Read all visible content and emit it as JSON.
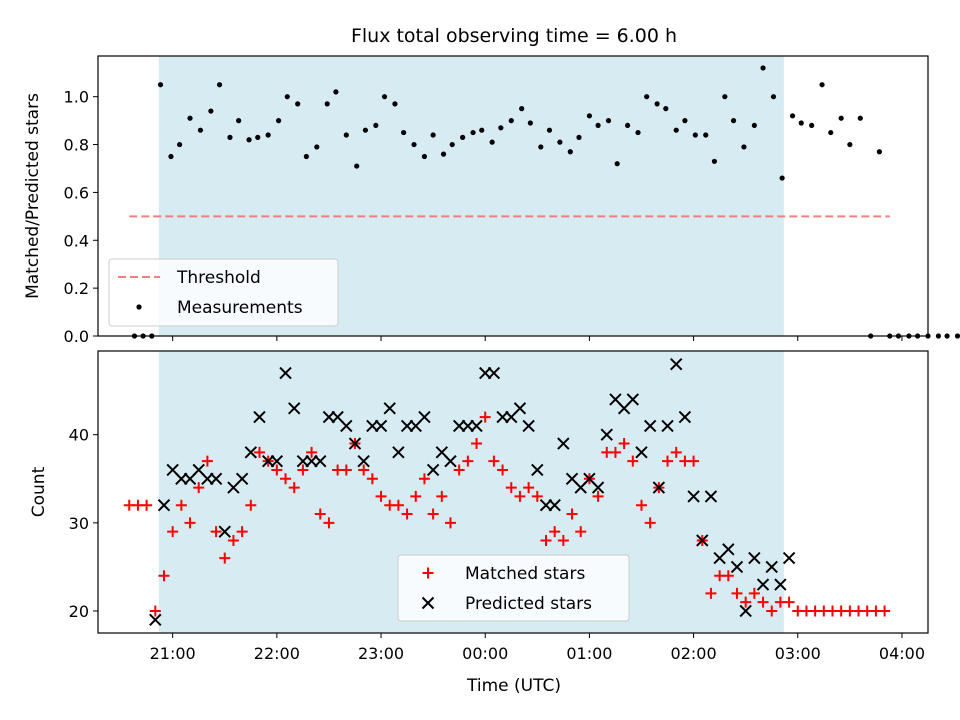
{
  "chart_data": [
    {
      "type": "scatter",
      "title": "Flux total observing time = 6.00 h",
      "xlabel": "",
      "ylabel": "Matched/Predicted stars",
      "ylim": [
        0,
        1.17
      ],
      "yticks": [
        "0.0",
        "0.2",
        "0.4",
        "0.6",
        "0.8",
        "1.0"
      ],
      "highlight_span": {
        "start": "20:52",
        "end": "02:52",
        "color": "#add8e6"
      },
      "legend_position": "lower-left",
      "threshold": {
        "name": "Threshold",
        "value": 0.5,
        "x_start": "20:35",
        "x_end": "03:53",
        "color": "#f08080",
        "style": "dashed"
      },
      "series": [
        {
          "name": "Measurements",
          "color": "#000000",
          "marker": "dot",
          "points": [
            [
              "20:38",
              0
            ],
            [
              "20:43",
              0
            ],
            [
              "20:48",
              0
            ],
            [
              "20:53",
              1.05
            ],
            [
              "20:59",
              0.75
            ],
            [
              "21:04",
              0.8
            ],
            [
              "21:10",
              0.91
            ],
            [
              "21:16",
              0.86
            ],
            [
              "21:22",
              0.94
            ],
            [
              "21:27",
              1.05
            ],
            [
              "21:33",
              0.83
            ],
            [
              "21:38",
              0.9
            ],
            [
              "21:44",
              0.82
            ],
            [
              "21:49",
              0.83
            ],
            [
              "21:55",
              0.84
            ],
            [
              "22:01",
              0.9
            ],
            [
              "22:06",
              1.0
            ],
            [
              "22:12",
              0.97
            ],
            [
              "22:17",
              0.75
            ],
            [
              "22:23",
              0.79
            ],
            [
              "22:29",
              0.97
            ],
            [
              "22:34",
              1.02
            ],
            [
              "22:40",
              0.84
            ],
            [
              "22:46",
              0.71
            ],
            [
              "22:51",
              0.86
            ],
            [
              "22:57",
              0.88
            ],
            [
              "23:02",
              1.0
            ],
            [
              "23:08",
              0.97
            ],
            [
              "23:13",
              0.85
            ],
            [
              "23:19",
              0.8
            ],
            [
              "23:25",
              0.75
            ],
            [
              "23:30",
              0.84
            ],
            [
              "23:36",
              0.76
            ],
            [
              "23:41",
              0.8
            ],
            [
              "23:47",
              0.83
            ],
            [
              "23:53",
              0.85
            ],
            [
              "23:58",
              0.86
            ],
            [
              "00:04",
              0.81
            ],
            [
              "00:09",
              0.87
            ],
            [
              "00:15",
              0.9
            ],
            [
              "00:21",
              0.95
            ],
            [
              "00:26",
              0.89
            ],
            [
              "00:32",
              0.79
            ],
            [
              "00:37",
              0.86
            ],
            [
              "00:43",
              0.81
            ],
            [
              "00:49",
              0.77
            ],
            [
              "00:54",
              0.83
            ],
            [
              "01:00",
              0.92
            ],
            [
              "01:05",
              0.88
            ],
            [
              "01:11",
              0.9
            ],
            [
              "01:16",
              0.72
            ],
            [
              "01:22",
              0.88
            ],
            [
              "01:28",
              0.85
            ],
            [
              "01:33",
              1.0
            ],
            [
              "01:39",
              0.97
            ],
            [
              "01:44",
              0.95
            ],
            [
              "01:50",
              0.86
            ],
            [
              "01:55",
              0.9
            ],
            [
              "02:01",
              0.84
            ],
            [
              "02:07",
              0.84
            ],
            [
              "02:12",
              0.73
            ],
            [
              "02:18",
              1.0
            ],
            [
              "02:23",
              0.9
            ],
            [
              "02:29",
              0.79
            ],
            [
              "02:35",
              0.88
            ],
            [
              "02:40",
              1.12
            ],
            [
              "02:46",
              1.0
            ],
            [
              "02:51",
              0.66
            ],
            [
              "02:57",
              0.92
            ],
            [
              "03:02",
              0.89
            ],
            [
              "03:08",
              0.88
            ],
            [
              "03:14",
              1.05
            ],
            [
              "03:19",
              0.85
            ],
            [
              "03:25",
              0.91
            ],
            [
              "03:30",
              0.8
            ],
            [
              "03:36",
              0.91
            ],
            [
              "03:42",
              0
            ],
            [
              "03:47",
              0.77
            ],
            [
              "03:53",
              0
            ],
            [
              "03:58",
              0
            ],
            [
              "04:04",
              0
            ],
            [
              "04:09",
              0
            ],
            [
              "04:15",
              0
            ],
            [
              "04:21",
              0
            ],
            [
              "04:26",
              0
            ],
            [
              "04:32",
              0
            ],
            [
              "04:37",
              0
            ],
            [
              "04:43",
              0
            ],
            [
              "04:49",
              0
            ]
          ]
        }
      ]
    },
    {
      "type": "scatter",
      "title": "",
      "xlabel": "Time (UTC)",
      "ylabel": "Count",
      "ylim": [
        17.5,
        49.5
      ],
      "yticks": [
        "20",
        "30",
        "40"
      ],
      "xlim": [
        "20:17",
        "04:15"
      ],
      "xticks": [
        "21:00",
        "22:00",
        "23:00",
        "00:00",
        "01:00",
        "02:00",
        "03:00",
        "04:00"
      ],
      "highlight_span": {
        "start": "20:52",
        "end": "02:52",
        "color": "#add8e6"
      },
      "legend_position": "lower-center",
      "series": [
        {
          "name": "Matched stars",
          "color": "#ff0000",
          "marker": "plus",
          "points": [
            [
              "20:35",
              32
            ],
            [
              "20:40",
              32
            ],
            [
              "20:45",
              32
            ],
            [
              "20:50",
              20
            ],
            [
              "20:55",
              24
            ],
            [
              "21:00",
              29
            ],
            [
              "21:05",
              32
            ],
            [
              "21:10",
              30
            ],
            [
              "21:15",
              34
            ],
            [
              "21:20",
              37
            ],
            [
              "21:25",
              29
            ],
            [
              "21:30",
              26
            ],
            [
              "21:35",
              28
            ],
            [
              "21:40",
              29
            ],
            [
              "21:45",
              32
            ],
            [
              "21:50",
              38
            ],
            [
              "21:55",
              37
            ],
            [
              "22:00",
              36
            ],
            [
              "22:05",
              35
            ],
            [
              "22:10",
              34
            ],
            [
              "22:15",
              36
            ],
            [
              "22:20",
              38
            ],
            [
              "22:25",
              31
            ],
            [
              "22:30",
              30
            ],
            [
              "22:35",
              36
            ],
            [
              "22:40",
              36
            ],
            [
              "22:45",
              39
            ],
            [
              "22:50",
              36
            ],
            [
              "22:55",
              35
            ],
            [
              "23:00",
              33
            ],
            [
              "23:05",
              32
            ],
            [
              "23:10",
              32
            ],
            [
              "23:15",
              31
            ],
            [
              "23:20",
              33
            ],
            [
              "23:25",
              35
            ],
            [
              "23:30",
              31
            ],
            [
              "23:35",
              33
            ],
            [
              "23:40",
              30
            ],
            [
              "23:45",
              36
            ],
            [
              "23:50",
              37
            ],
            [
              "23:55",
              39
            ],
            [
              "00:00",
              42
            ],
            [
              "00:05",
              37
            ],
            [
              "00:10",
              36
            ],
            [
              "00:15",
              34
            ],
            [
              "00:20",
              33
            ],
            [
              "00:25",
              34
            ],
            [
              "00:30",
              33
            ],
            [
              "00:35",
              28
            ],
            [
              "00:40",
              29
            ],
            [
              "00:45",
              28
            ],
            [
              "00:50",
              31
            ],
            [
              "00:55",
              29
            ],
            [
              "01:00",
              35
            ],
            [
              "01:05",
              33
            ],
            [
              "01:10",
              38
            ],
            [
              "01:15",
              38
            ],
            [
              "01:20",
              39
            ],
            [
              "01:25",
              37
            ],
            [
              "01:30",
              32
            ],
            [
              "01:35",
              30
            ],
            [
              "01:40",
              34
            ],
            [
              "01:45",
              37
            ],
            [
              "01:50",
              38
            ],
            [
              "01:55",
              37
            ],
            [
              "02:00",
              37
            ],
            [
              "02:05",
              28
            ],
            [
              "02:10",
              22
            ],
            [
              "02:15",
              24
            ],
            [
              "02:20",
              24
            ],
            [
              "02:25",
              22
            ],
            [
              "02:30",
              21
            ],
            [
              "02:35",
              22
            ],
            [
              "02:40",
              21
            ],
            [
              "02:45",
              20
            ],
            [
              "02:50",
              21
            ],
            [
              "02:55",
              21
            ],
            [
              "03:00",
              20
            ],
            [
              "03:05",
              20
            ],
            [
              "03:10",
              20
            ],
            [
              "03:15",
              20
            ],
            [
              "03:20",
              20
            ],
            [
              "03:25",
              20
            ],
            [
              "03:30",
              20
            ],
            [
              "03:35",
              20
            ],
            [
              "03:40",
              20
            ],
            [
              "03:45",
              20
            ],
            [
              "03:50",
              20
            ]
          ]
        },
        {
          "name": "Predicted stars",
          "color": "#000000",
          "marker": "x",
          "points": [
            [
              "20:50",
              19
            ],
            [
              "20:55",
              32
            ],
            [
              "21:00",
              36
            ],
            [
              "21:05",
              35
            ],
            [
              "21:10",
              35
            ],
            [
              "21:15",
              36
            ],
            [
              "21:20",
              35
            ],
            [
              "21:25",
              35
            ],
            [
              "21:30",
              29
            ],
            [
              "21:35",
              34
            ],
            [
              "21:40",
              35
            ],
            [
              "21:45",
              38
            ],
            [
              "21:50",
              42
            ],
            [
              "21:55",
              37
            ],
            [
              "22:00",
              37
            ],
            [
              "22:05",
              47
            ],
            [
              "22:10",
              43
            ],
            [
              "22:15",
              37
            ],
            [
              "22:20",
              37
            ],
            [
              "22:25",
              37
            ],
            [
              "22:30",
              42
            ],
            [
              "22:35",
              42
            ],
            [
              "22:40",
              41
            ],
            [
              "22:45",
              39
            ],
            [
              "22:50",
              37
            ],
            [
              "22:55",
              41
            ],
            [
              "23:00",
              41
            ],
            [
              "23:05",
              43
            ],
            [
              "23:10",
              38
            ],
            [
              "23:15",
              41
            ],
            [
              "23:20",
              41
            ],
            [
              "23:25",
              42
            ],
            [
              "23:30",
              36
            ],
            [
              "23:35",
              38
            ],
            [
              "23:40",
              37
            ],
            [
              "23:45",
              41
            ],
            [
              "23:50",
              41
            ],
            [
              "23:55",
              41
            ],
            [
              "00:00",
              47
            ],
            [
              "00:05",
              47
            ],
            [
              "00:10",
              42
            ],
            [
              "00:15",
              42
            ],
            [
              "00:20",
              43
            ],
            [
              "00:25",
              41
            ],
            [
              "00:30",
              36
            ],
            [
              "00:35",
              32
            ],
            [
              "00:40",
              32
            ],
            [
              "00:45",
              39
            ],
            [
              "00:50",
              35
            ],
            [
              "00:55",
              34
            ],
            [
              "01:00",
              35
            ],
            [
              "01:05",
              34
            ],
            [
              "01:10",
              40
            ],
            [
              "01:15",
              44
            ],
            [
              "01:20",
              43
            ],
            [
              "01:25",
              44
            ],
            [
              "01:30",
              38
            ],
            [
              "01:35",
              41
            ],
            [
              "01:40",
              34
            ],
            [
              "01:45",
              41
            ],
            [
              "01:50",
              48
            ],
            [
              "01:55",
              42
            ],
            [
              "02:00",
              33
            ],
            [
              "02:05",
              28
            ],
            [
              "02:10",
              33
            ],
            [
              "02:15",
              26
            ],
            [
              "02:20",
              27
            ],
            [
              "02:25",
              25
            ],
            [
              "02:30",
              20
            ],
            [
              "02:35",
              26
            ],
            [
              "02:40",
              23
            ],
            [
              "02:45",
              25
            ],
            [
              "02:50",
              23
            ],
            [
              "02:55",
              26
            ]
          ]
        }
      ]
    }
  ]
}
